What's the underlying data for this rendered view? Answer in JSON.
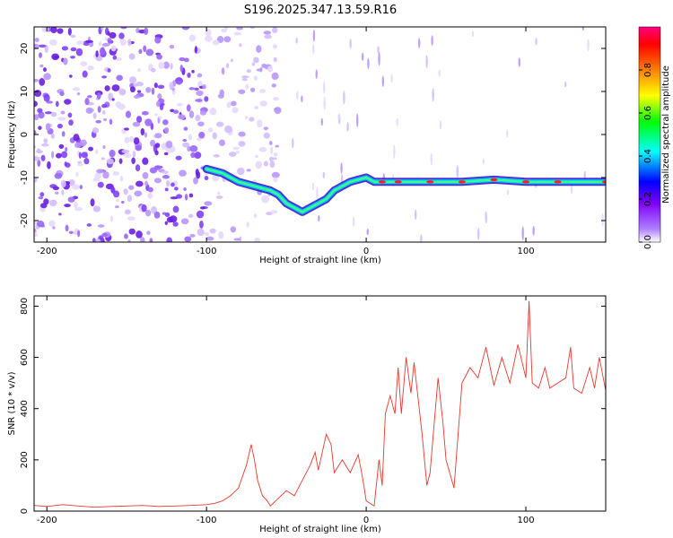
{
  "title": "S196.2025.347.13.59.R16",
  "chart_data": [
    {
      "type": "heatmap",
      "xlabel": "Height of straight line (km)",
      "ylabel": "Frequency (Hz)",
      "xlim": [
        -208,
        150
      ],
      "ylim": [
        -25,
        25
      ],
      "xticks": [
        -200,
        -100,
        0,
        100
      ],
      "yticks": [
        -20,
        -10,
        0,
        10,
        20
      ],
      "colorbar": {
        "label": "Normalized spectral amplitude",
        "range": [
          0.0,
          1.0
        ],
        "ticks": [
          0.0,
          0.2,
          0.4,
          0.6,
          0.8
        ],
        "tick_labels": [
          "0.0",
          "0.2",
          "0.4",
          "0.6",
          "0.8"
        ],
        "colors": [
          "#ffffff",
          "#8000ff",
          "#0000ff",
          "#00ffff",
          "#00ff00",
          "#ffff00",
          "#ff8000",
          "#ff0000",
          "#ff0080"
        ]
      },
      "ridge": {
        "name": "dominant frequency track",
        "x": [
          -100,
          -90,
          -80,
          -70,
          -60,
          -55,
          -50,
          -45,
          -40,
          -35,
          -30,
          -25,
          -20,
          -15,
          -10,
          -5,
          0,
          5,
          10,
          20,
          40,
          60,
          80,
          100,
          120,
          150
        ],
        "y": [
          -8,
          -9,
          -11,
          -12,
          -13,
          -14,
          -16,
          -17,
          -18,
          -17,
          -16,
          -15,
          -13,
          -12,
          -11,
          -10.5,
          -10,
          -11,
          -11,
          -11,
          -11,
          -11,
          -10.5,
          -11,
          -11,
          -11
        ]
      }
    },
    {
      "type": "line",
      "xlabel": "Height of straight line (km)",
      "ylabel": "SNR (10 * v/v)",
      "xlim": [
        -208,
        150
      ],
      "ylim": [
        0,
        840
      ],
      "xticks": [
        -200,
        -100,
        0,
        100
      ],
      "yticks": [
        0,
        200,
        400,
        600,
        800
      ],
      "series": [
        {
          "name": "SNR",
          "color": "#e8382e",
          "x": [
            -208,
            -200,
            -190,
            -180,
            -170,
            -160,
            -150,
            -140,
            -130,
            -120,
            -110,
            -100,
            -95,
            -90,
            -85,
            -80,
            -75,
            -72,
            -70,
            -68,
            -65,
            -62,
            -60,
            -55,
            -50,
            -45,
            -40,
            -35,
            -32,
            -30,
            -25,
            -22,
            -20,
            -15,
            -10,
            -5,
            -2,
            0,
            5,
            8,
            10,
            12,
            15,
            18,
            20,
            22,
            25,
            28,
            30,
            35,
            38,
            40,
            45,
            48,
            50,
            55,
            60,
            65,
            70,
            75,
            80,
            85,
            90,
            95,
            100,
            102,
            104,
            108,
            112,
            115,
            120,
            125,
            128,
            130,
            135,
            140,
            143,
            146,
            150
          ],
          "y": [
            22,
            18,
            25,
            20,
            15,
            18,
            20,
            22,
            18,
            20,
            22,
            25,
            30,
            40,
            60,
            90,
            180,
            260,
            200,
            120,
            60,
            40,
            20,
            50,
            80,
            60,
            120,
            180,
            230,
            160,
            300,
            260,
            150,
            200,
            150,
            220,
            120,
            40,
            20,
            200,
            100,
            380,
            450,
            380,
            560,
            380,
            600,
            460,
            580,
            300,
            100,
            150,
            520,
            350,
            200,
            90,
            500,
            560,
            520,
            640,
            490,
            600,
            500,
            650,
            520,
            820,
            500,
            480,
            560,
            480,
            500,
            520,
            640,
            480,
            460,
            560,
            480,
            600,
            470
          ]
        }
      ]
    }
  ]
}
